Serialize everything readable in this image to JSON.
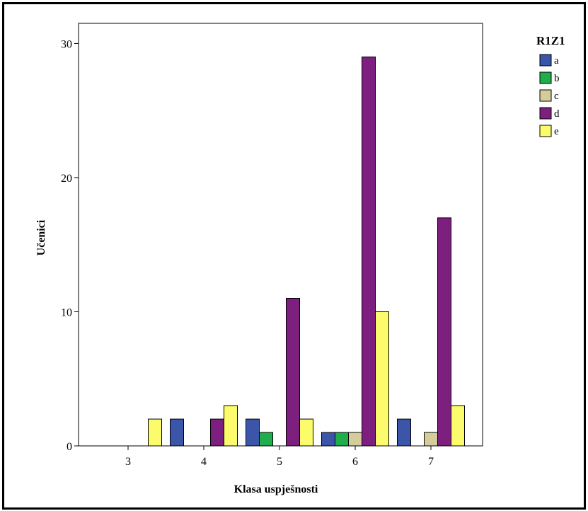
{
  "chart_data": {
    "type": "bar",
    "title": "",
    "xlabel": "Klasa uspješnosti",
    "ylabel": "Učenici",
    "categories": [
      "3",
      "4",
      "5",
      "6",
      "7"
    ],
    "ylim": [
      0,
      31.5
    ],
    "yticks": [
      "0",
      "10",
      "20",
      "30"
    ],
    "grid": false,
    "legend": {
      "title": "R1Z1",
      "placement": "top-right, outside plot"
    },
    "series": [
      {
        "name": "a",
        "color": "#3B55A8",
        "values": [
          0,
          2,
          2,
          1,
          2
        ]
      },
      {
        "name": "b",
        "color": "#1FAE4B",
        "values": [
          0,
          0,
          1,
          1,
          0
        ]
      },
      {
        "name": "c",
        "color": "#D4CC9A",
        "values": [
          0,
          0,
          0,
          1,
          1
        ]
      },
      {
        "name": "d",
        "color": "#7C1F7E",
        "values": [
          0,
          2,
          11,
          29,
          17
        ]
      },
      {
        "name": "e",
        "color": "#FBFB6C",
        "values": [
          2,
          3,
          2,
          10,
          3
        ]
      }
    ]
  }
}
